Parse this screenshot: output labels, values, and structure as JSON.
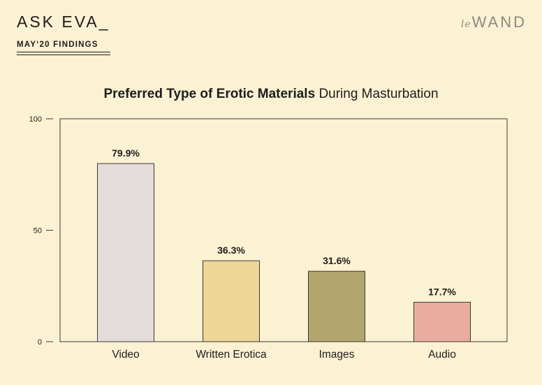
{
  "header": {
    "brand": "ASK EVA_",
    "subtitle": "MAY‘20 FINDINGS",
    "logo_prefix": "le",
    "logo_main": "WAND"
  },
  "chart_title": {
    "bold": "Preferred Type of Erotic Materials",
    "regular": "During Masturbation"
  },
  "chart_data": {
    "type": "bar",
    "title": "Preferred Type of Erotic Materials During Masturbation",
    "categories": [
      "Video",
      "Written Erotica",
      "Images",
      "Audio"
    ],
    "values": [
      79.9,
      36.3,
      31.6,
      17.7
    ],
    "data_labels": [
      "79.9%",
      "36.3%",
      "31.6%",
      "17.7%"
    ],
    "colors": [
      "#e4dcdb",
      "#eed698",
      "#b2a56e",
      "#e9aca0"
    ],
    "ylim": [
      0,
      100
    ],
    "yticks": [
      0,
      50,
      100
    ],
    "grid": false,
    "legend": "none"
  }
}
